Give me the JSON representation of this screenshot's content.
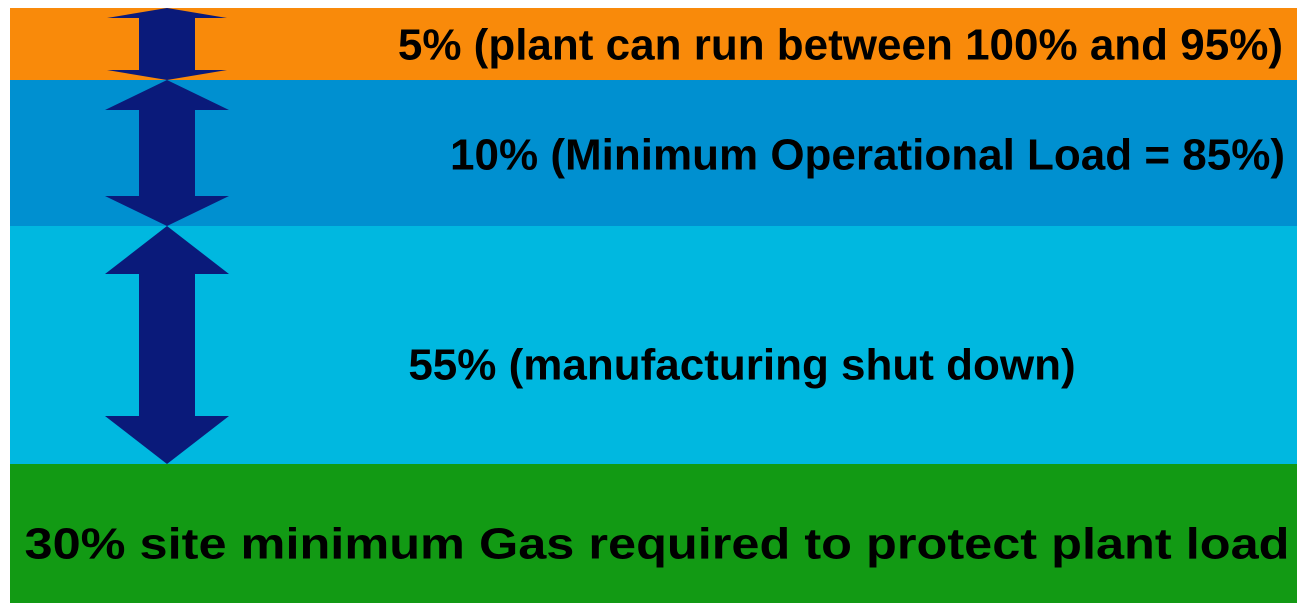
{
  "bands": [
    {
      "label": "5% (plant can run between 100% and 95%)"
    },
    {
      "label": "10% (Minimum Operational Load = 85%)"
    },
    {
      "label": "55% (manufacturing shut down)"
    },
    {
      "label": "30% site minimum Gas required to protect plant load"
    }
  ]
}
